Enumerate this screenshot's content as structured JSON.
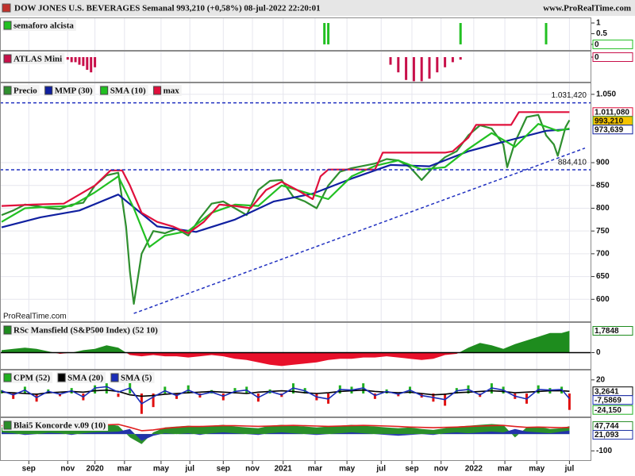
{
  "header": {
    "title": "DOW JONES U.S. BEVERAGES Semanal 993,210 (+0,58%) 08-jul-2022 22:20:01",
    "site": "www.ProRealTime.com"
  },
  "chart_data": [
    {
      "type": "bar",
      "ylim": [
        -0.3,
        1.26
      ],
      "yticks": [
        1,
        0.5,
        0
      ],
      "series": [
        {
          "name": "semaforo alcista",
          "color": "#22c022",
          "x": [
            83,
            84,
            118,
            140
          ],
          "values": [
            1,
            1,
            1,
            1
          ],
          "current": 0
        }
      ]
    },
    {
      "type": "bar",
      "ylim": [
        -1,
        0.25
      ],
      "yticks": [
        0
      ],
      "series": [
        {
          "name": "ATLAS Mini",
          "color": "#c8104a",
          "x": [
            17,
            18,
            19,
            20,
            21,
            22,
            23,
            24,
            100,
            102,
            104,
            106,
            108,
            110,
            112,
            114,
            116,
            118
          ],
          "values": [
            -0.1,
            -0.2,
            -0.2,
            -0.3,
            -0.35,
            -0.5,
            -0.6,
            -0.4,
            -0.3,
            -0.6,
            -0.9,
            -0.95,
            -0.95,
            -0.85,
            -0.6,
            -0.4,
            -0.2,
            -0.1
          ],
          "current": 0
        }
      ]
    },
    {
      "type": "line",
      "ylim": [
        550,
        1076
      ],
      "grid": true,
      "watermark": "ProRealTime.com",
      "yticks": [
        {
          "value": 1050,
          "label": "1.050"
        },
        900,
        850,
        800,
        750,
        700,
        650,
        600
      ],
      "series": [
        {
          "name": "Precio",
          "color": "#2f8f2f",
          "x": [
            0,
            3,
            6,
            9,
            12,
            15,
            18,
            21,
            24,
            27,
            30,
            32,
            33,
            34,
            36,
            39,
            42,
            45,
            48,
            51,
            54,
            57,
            60,
            63,
            66,
            69,
            72,
            75,
            78,
            81,
            84,
            87,
            90,
            93,
            96,
            99,
            102,
            105,
            108,
            111,
            114,
            117,
            120,
            123,
            126,
            129,
            130,
            132,
            135,
            138,
            140,
            142,
            143,
            145,
            146
          ],
          "values": [
            785,
            795,
            808,
            805,
            800,
            798,
            808,
            812,
            850,
            872,
            878,
            760,
            660,
            590,
            700,
            750,
            745,
            755,
            740,
            778,
            810,
            815,
            800,
            785,
            840,
            860,
            862,
            825,
            815,
            800,
            850,
            880,
            888,
            893,
            898,
            908,
            905,
            890,
            862,
            890,
            912,
            925,
            960,
            982,
            975,
            940,
            890,
            945,
            1000,
            1005,
            960,
            940,
            915,
            978,
            993.21
          ],
          "current": {
            "value": 993.21,
            "label": "993,210"
          },
          "box_fill": "#f5c400"
        },
        {
          "name": "MMP (30)",
          "color": "#1020a0",
          "x": [
            0,
            10,
            20,
            30,
            40,
            50,
            60,
            70,
            80,
            90,
            100,
            110,
            120,
            130,
            140,
            146
          ],
          "values": [
            758,
            780,
            795,
            830,
            760,
            748,
            775,
            815,
            832,
            865,
            895,
            892,
            925,
            948,
            970,
            973.639
          ],
          "current": {
            "value": 973.639,
            "label": "973,639"
          }
        },
        {
          "name": "SMA (10)",
          "color": "#22c022",
          "x": [
            0,
            6,
            12,
            18,
            24,
            30,
            34,
            38,
            42,
            48,
            54,
            60,
            66,
            72,
            78,
            84,
            90,
            96,
            102,
            108,
            114,
            120,
            126,
            132,
            138,
            143,
            146
          ],
          "values": [
            770,
            800,
            803,
            805,
            835,
            870,
            800,
            715,
            740,
            750,
            790,
            808,
            805,
            850,
            835,
            820,
            870,
            893,
            905,
            885,
            890,
            930,
            965,
            935,
            985,
            970,
            975
          ]
        },
        {
          "name": "max",
          "color": "#e0103c",
          "x": [
            0,
            8,
            16,
            24,
            28,
            31,
            33,
            36,
            40,
            44,
            48,
            52,
            56,
            60,
            64,
            68,
            72,
            76,
            80,
            82,
            84,
            96,
            98,
            114,
            116,
            120,
            122,
            131,
            133,
            146
          ],
          "values": [
            805,
            808,
            810,
            850,
            883,
            883,
            850,
            790,
            770,
            760,
            745,
            770,
            808,
            805,
            800,
            840,
            858,
            840,
            820,
            870,
            885,
            885,
            922,
            922,
            925,
            955,
            983,
            983,
            1011.08,
            1011.08
          ],
          "current": {
            "value": 1011.08,
            "label": "1.011,080"
          }
        }
      ],
      "levels": [
        {
          "value": 1031.42,
          "label": "1.031,420"
        },
        {
          "value": 884.41,
          "label": "884,410"
        }
      ],
      "level_color": "#2030c0",
      "trendline": {
        "x": [
          34,
          150
        ],
        "values": [
          569,
          932
        ]
      }
    },
    {
      "type": "area",
      "ylim": [
        -1.4,
        2.5
      ],
      "yticks": [
        0
      ],
      "x": [
        0,
        3,
        6,
        9,
        12,
        15,
        18,
        21,
        24,
        27,
        30,
        33,
        36,
        39,
        42,
        45,
        48,
        51,
        54,
        57,
        60,
        63,
        66,
        69,
        72,
        75,
        78,
        81,
        84,
        87,
        90,
        93,
        96,
        99,
        102,
        105,
        108,
        111,
        114,
        117,
        120,
        123,
        126,
        129,
        132,
        135,
        138,
        141,
        144,
        146
      ],
      "series": [
        {
          "name": "RSc Mansfield (S&P500 Index) (52 10)",
          "color": "#1e8c1e",
          "negative_color": "#e8102a",
          "values": [
            0.2,
            0.3,
            0.4,
            0.3,
            0.1,
            -0.1,
            0.0,
            0.2,
            0.3,
            0.6,
            0.4,
            -0.2,
            -0.3,
            -0.2,
            -0.3,
            -0.3,
            -0.4,
            -0.3,
            -0.2,
            -0.3,
            -0.5,
            -0.6,
            -0.8,
            -1.0,
            -1.1,
            -1.0,
            -0.9,
            -0.8,
            -0.6,
            -0.5,
            -0.5,
            -0.4,
            -0.4,
            -0.3,
            -0.4,
            -0.5,
            -0.6,
            -0.5,
            -0.2,
            -0.1,
            0.4,
            0.8,
            0.6,
            0.3,
            0.7,
            1.0,
            1.3,
            1.6,
            1.6,
            1.7848
          ],
          "current": {
            "value": 1.7848,
            "label": "1,7848"
          }
        }
      ]
    },
    {
      "type": "bar",
      "ylim": [
        -35,
        35
      ],
      "yticks": [
        20
      ],
      "x": [
        0,
        3,
        6,
        9,
        12,
        15,
        18,
        21,
        24,
        27,
        30,
        33,
        36,
        39,
        42,
        45,
        48,
        51,
        54,
        57,
        60,
        63,
        66,
        69,
        72,
        75,
        78,
        81,
        84,
        87,
        90,
        93,
        96,
        99,
        102,
        105,
        108,
        111,
        114,
        117,
        120,
        123,
        126,
        129,
        132,
        135,
        138,
        141,
        144,
        146
      ],
      "series": [
        {
          "name": "CPM (52)",
          "color": "#20b020",
          "negative_color": "#e01010",
          "values": [
            5,
            -8,
            10,
            -12,
            6,
            -4,
            8,
            -10,
            12,
            15,
            -5,
            20,
            -30,
            -20,
            10,
            -8,
            12,
            -6,
            5,
            -10,
            8,
            10,
            -12,
            6,
            -5,
            15,
            8,
            -10,
            -15,
            12,
            10,
            15,
            -8,
            6,
            -4,
            10,
            -6,
            -12,
            -18,
            8,
            12,
            -5,
            15,
            10,
            -8,
            -15,
            12,
            8,
            10,
            -24.15
          ],
          "current": {
            "value": -24.15,
            "label": "-24,150"
          }
        },
        {
          "name": "SMA (20)",
          "type": "line",
          "color": "#000000",
          "values": [
            2,
            1,
            0,
            -1,
            1,
            2,
            3,
            2,
            4,
            5,
            3,
            -2,
            -4,
            -3,
            -1,
            0,
            1,
            2,
            3,
            2,
            1,
            0,
            2,
            3,
            4,
            3,
            1,
            0,
            1,
            3,
            4,
            5,
            3,
            2,
            1,
            2,
            0,
            -2,
            -1,
            1,
            2,
            3,
            4,
            3,
            1,
            2,
            3,
            4,
            4,
            3.2641
          ],
          "current": {
            "value": 3.2641,
            "label": "3,2641"
          }
        },
        {
          "name": "SMA (5)",
          "type": "line",
          "color": "#1a2db8",
          "values": [
            4,
            -2,
            5,
            -6,
            3,
            -1,
            4,
            -5,
            8,
            10,
            2,
            8,
            -15,
            -5,
            4,
            -3,
            5,
            -2,
            2,
            -4,
            3,
            5,
            -6,
            3,
            -2,
            8,
            4,
            -5,
            -8,
            6,
            5,
            8,
            -3,
            3,
            -1,
            5,
            -3,
            -6,
            -9,
            4,
            6,
            -2,
            8,
            5,
            -4,
            -8,
            6,
            5,
            6,
            -7.5869
          ],
          "current": {
            "value": -7.5869,
            "label": "-7,5869"
          }
        }
      ]
    },
    {
      "type": "area",
      "ylim": [
        -160,
        100
      ],
      "yticks": [
        -100
      ],
      "xlim": [
        0,
        150
      ],
      "xticks": [
        {
          "value": 7,
          "label": "sep"
        },
        {
          "value": 17,
          "label": "nov"
        },
        {
          "value": 24,
          "label": "2020"
        },
        {
          "value": 31.6,
          "label": "mar"
        },
        {
          "value": 41,
          "label": "may"
        },
        {
          "value": 48.4,
          "label": "jul"
        },
        {
          "value": 57,
          "label": "sep"
        },
        {
          "value": 64.5,
          "label": "nov"
        },
        {
          "value": 72.4,
          "label": "2021"
        },
        {
          "value": 80.6,
          "label": "mar"
        },
        {
          "value": 88.8,
          "label": "may"
        },
        {
          "value": 97.6,
          "label": "jul"
        },
        {
          "value": 105.5,
          "label": "sep"
        },
        {
          "value": 113,
          "label": "nov"
        },
        {
          "value": 121.4,
          "label": "2022"
        },
        {
          "value": 129.4,
          "label": "mar"
        },
        {
          "value": 137.6,
          "label": "may"
        },
        {
          "value": 146,
          "label": "jul"
        }
      ],
      "x": [
        0,
        3,
        6,
        9,
        12,
        15,
        18,
        21,
        24,
        27,
        30,
        33,
        36,
        39,
        42,
        45,
        48,
        51,
        54,
        57,
        60,
        63,
        66,
        69,
        72,
        75,
        78,
        81,
        84,
        87,
        90,
        93,
        96,
        99,
        102,
        105,
        108,
        111,
        114,
        117,
        120,
        123,
        126,
        129,
        132,
        135,
        138,
        141,
        144,
        146
      ],
      "series": [
        {
          "name": "Blai5 Koncorde v.09 (10)",
          "color": "#2a8f2a",
          "values": [
            40,
            45,
            30,
            35,
            50,
            45,
            30,
            40,
            55,
            60,
            50,
            -20,
            -60,
            10,
            40,
            45,
            50,
            45,
            50,
            55,
            45,
            40,
            35,
            50,
            55,
            50,
            45,
            40,
            45,
            50,
            55,
            50,
            45,
            40,
            35,
            40,
            30,
            25,
            35,
            45,
            50,
            55,
            60,
            55,
            -20,
            40,
            45,
            30,
            35,
            47.744
          ],
          "current": {
            "value": 47.744,
            "label": "47,744"
          }
        },
        {
          "color": "#2233aa",
          "values": [
            10,
            5,
            -5,
            0,
            8,
            5,
            -5,
            5,
            10,
            12,
            15,
            30,
            -40,
            -10,
            5,
            0,
            5,
            -5,
            5,
            10,
            5,
            0,
            -5,
            5,
            10,
            5,
            0,
            -5,
            0,
            5,
            10,
            5,
            0,
            -5,
            -10,
            -5,
            0,
            -5,
            5,
            10,
            5,
            10,
            15,
            10,
            30,
            15,
            10,
            5,
            15,
            21.093
          ],
          "current": {
            "value": 21.093,
            "label": "21,093"
          }
        },
        {
          "type": "line",
          "color": "#e02020",
          "values": [
            50,
            52,
            50,
            48,
            50,
            52,
            50,
            48,
            52,
            55,
            58,
            40,
            20,
            25,
            35,
            40,
            45,
            45,
            48,
            50,
            50,
            48,
            46,
            48,
            50,
            52,
            50,
            48,
            46,
            48,
            50,
            52,
            50,
            48,
            45,
            42,
            40,
            38,
            40,
            42,
            45,
            48,
            50,
            52,
            45,
            40,
            42,
            40,
            38,
            40
          ]
        }
      ]
    }
  ]
}
